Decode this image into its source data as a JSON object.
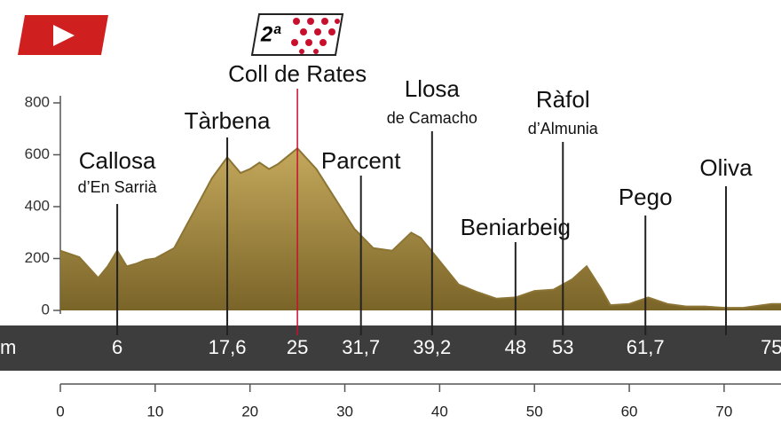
{
  "chart_data": {
    "type": "area",
    "badge": "2ª",
    "unit_label": "m",
    "x": [
      0,
      2,
      4,
      5,
      6,
      7,
      8,
      9,
      10,
      12,
      14,
      16,
      17.6,
      19,
      20,
      21,
      22,
      23,
      25,
      27,
      29,
      31,
      33,
      35,
      37,
      38,
      40,
      42,
      44,
      46,
      48,
      50,
      52,
      54,
      55.5,
      57,
      58,
      60,
      62,
      64,
      66,
      68,
      70,
      72,
      75,
      76
    ],
    "values": [
      230,
      205,
      125,
      170,
      230,
      170,
      180,
      195,
      200,
      240,
      375,
      510,
      590,
      530,
      545,
      570,
      545,
      565,
      625,
      545,
      430,
      315,
      240,
      230,
      300,
      280,
      190,
      100,
      70,
      45,
      50,
      75,
      80,
      120,
      170,
      85,
      20,
      25,
      50,
      25,
      15,
      15,
      10,
      10,
      25,
      25
    ],
    "color": "#8c7434",
    "xlim": [
      0,
      76
    ],
    "ylim": [
      0,
      800
    ],
    "yticks": [
      0,
      200,
      400,
      600,
      800
    ],
    "xticks": [
      0,
      10,
      20,
      30,
      40,
      50,
      60,
      70
    ],
    "km_marks": [
      6,
      {
        "value": 17.6,
        "label": "17,6"
      },
      25,
      {
        "value": 31.7,
        "label": "31,7"
      },
      {
        "value": 39.2,
        "label": "39,2"
      },
      48,
      53,
      {
        "value": 61.7,
        "label": "61,7"
      },
      75
    ],
    "places": [
      {
        "name": "Callosa",
        "sub": "d’En Sarrià",
        "km": 6
      },
      {
        "name": "Tàrbena",
        "km": 17.6
      },
      {
        "name": "Coll de Rates",
        "km": 25
      },
      {
        "name": "Parcent",
        "km": 31.7
      },
      {
        "name": "Llosa",
        "sub": "de Camacho",
        "km": 39.2
      },
      {
        "name": "Beniarbeig",
        "km": 48
      },
      {
        "name": "Ràfol",
        "sub": "d’Almunia",
        "km": 53
      },
      {
        "name": "Pego",
        "km": 61.7
      },
      {
        "name": "Oliva",
        "km": 70.2
      }
    ]
  }
}
